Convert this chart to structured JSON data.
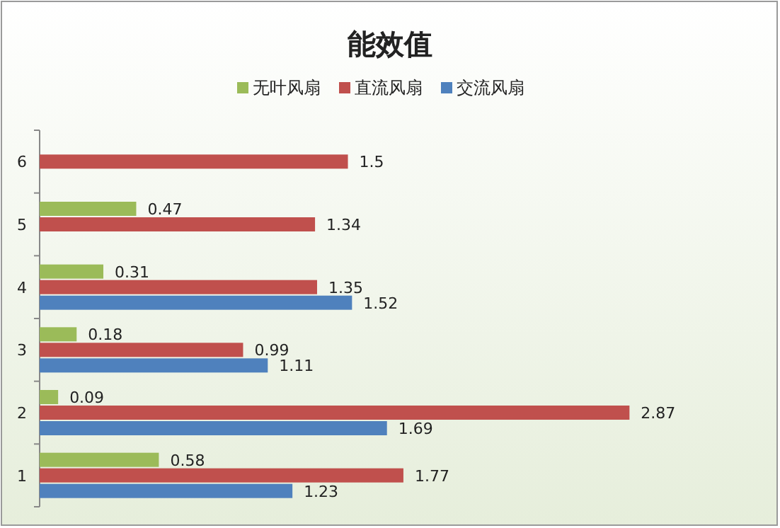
{
  "chart_data": {
    "type": "bar",
    "orientation": "horizontal",
    "title": "能效值",
    "categories": [
      "6",
      "5",
      "4",
      "3",
      "2",
      "1"
    ],
    "series": [
      {
        "name": "无叶风扇",
        "color": "#9bbb59",
        "values": [
          null,
          0.47,
          0.31,
          0.18,
          0.09,
          0.58
        ]
      },
      {
        "name": "直流风扇",
        "color": "#c0504d",
        "values": [
          1.5,
          1.34,
          1.35,
          0.99,
          2.87,
          1.77
        ]
      },
      {
        "name": "交流风扇",
        "color": "#4f81bd",
        "values": [
          null,
          null,
          1.52,
          1.11,
          1.69,
          1.23
        ]
      }
    ],
    "data_labels": true,
    "legend": "top",
    "grid": false
  }
}
